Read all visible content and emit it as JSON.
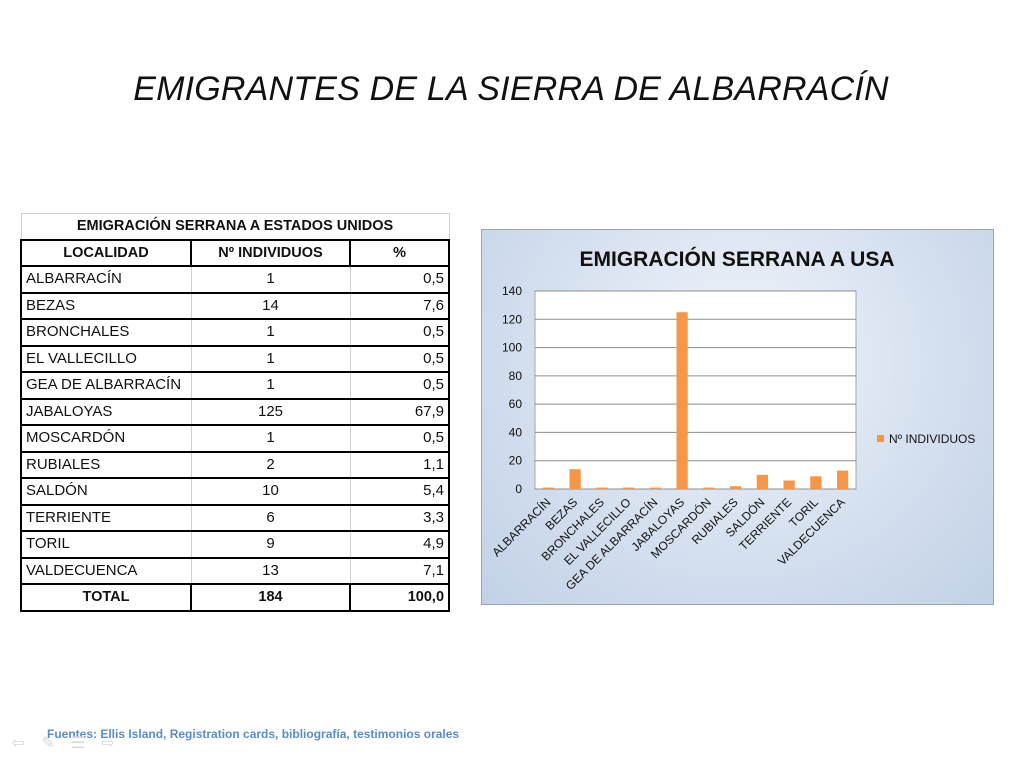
{
  "slide": {
    "title": "EMIGRANTES DE LA SIERRA DE ALBARRACÍN",
    "source": "Fuentes: Ellis Island, Registration cards, bibliografía, testimonios orales"
  },
  "table": {
    "caption": "EMIGRACIÓN SERRANA A ESTADOS UNIDOS",
    "headers": [
      "LOCALIDAD",
      "Nº INDIVIDUOS",
      "%"
    ],
    "rows": [
      [
        "ALBARRACÍN",
        "1",
        "0,5"
      ],
      [
        "BEZAS",
        "14",
        "7,6"
      ],
      [
        "BRONCHALES",
        "1",
        "0,5"
      ],
      [
        "EL VALLECILLO",
        "1",
        "0,5"
      ],
      [
        "GEA DE ALBARRACÍN",
        "1",
        "0,5"
      ],
      [
        "JABALOYAS",
        "125",
        "67,9"
      ],
      [
        "MOSCARDÓN",
        "1",
        "0,5"
      ],
      [
        "RUBIALES",
        "2",
        "1,1"
      ],
      [
        "SALDÓN",
        "10",
        "5,4"
      ],
      [
        "TERRIENTE",
        "6",
        "3,3"
      ],
      [
        "TORIL",
        "9",
        "4,9"
      ],
      [
        "VALDECUENCA",
        "13",
        "7,1"
      ]
    ],
    "total": [
      "TOTAL",
      "184",
      "100,0"
    ]
  },
  "nav": {
    "icons": [
      "arrow-left-icon",
      "pen-icon",
      "menu-icon",
      "arrow-right-icon"
    ]
  },
  "chart_data": {
    "type": "bar",
    "title": "EMIGRACIÓN SERRANA A USA",
    "categories": [
      "ALBARRACÍN",
      "BEZAS",
      "BRONCHALES",
      "EL VALLECILLO",
      "GEA DE ALBARRACÍN",
      "JABALOYAS",
      "MOSCARDÓN",
      "RUBIALES",
      "SALDÓN",
      "TERRIENTE",
      "TORIL",
      "VALDECUENCA"
    ],
    "series": [
      {
        "name": "Nº INDIVIDUOS",
        "values": [
          1,
          14,
          1,
          1,
          1,
          125,
          1,
          2,
          10,
          6,
          9,
          13
        ],
        "color": "#f79646"
      }
    ],
    "ylim": [
      0,
      140
    ],
    "yticks": [
      0,
      20,
      40,
      60,
      80,
      100,
      120,
      140
    ],
    "grid": true,
    "legend_position": "right",
    "xlabel": "",
    "ylabel": ""
  }
}
